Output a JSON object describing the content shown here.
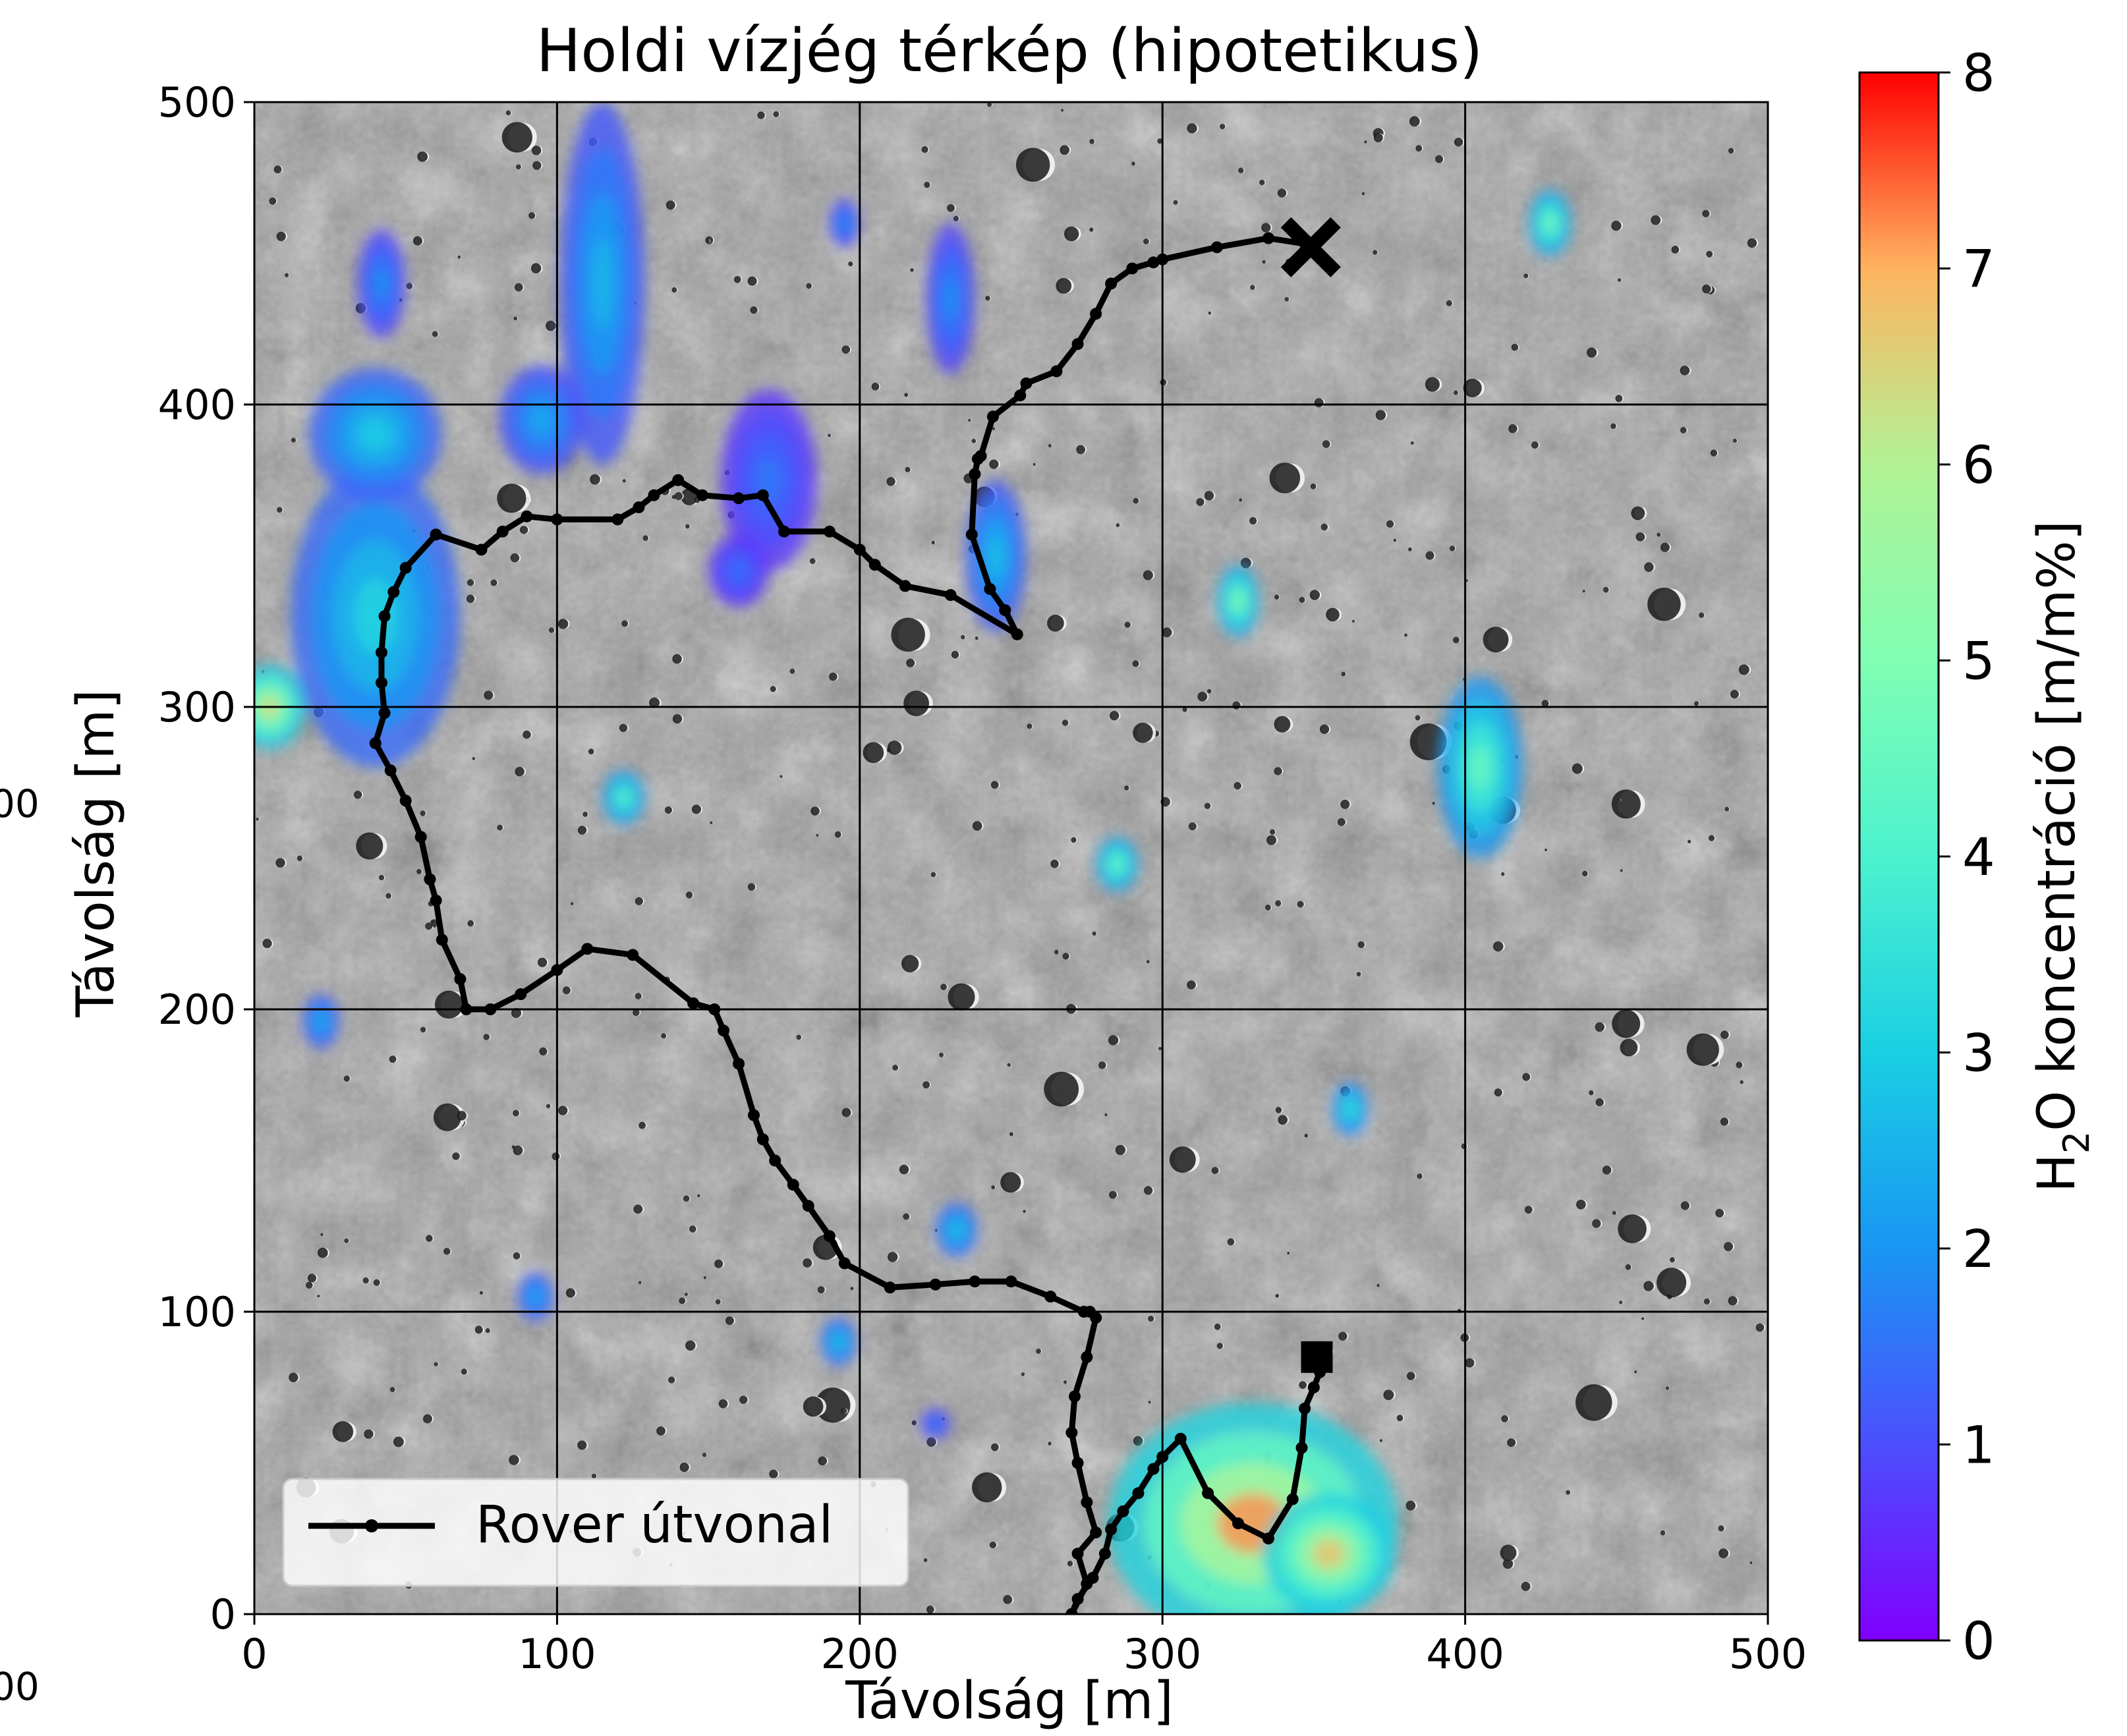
{
  "chart_data": {
    "type": "heatmap",
    "title": "Holdi vízjég térkép (hipotetikus)",
    "xlabel": "Távolság [m]",
    "ylabel": "Távolság [m]",
    "xlim": [
      0,
      500
    ],
    "ylim": [
      0,
      500
    ],
    "xticks": [
      "0",
      "100",
      "200",
      "300",
      "400",
      "500"
    ],
    "yticks": [
      "0",
      "100",
      "200",
      "300",
      "400",
      "500"
    ],
    "grid": true,
    "colorbar": {
      "label_main": "H",
      "label_sub": "2",
      "label_rest": "O koncentráció [m/m%]",
      "min": 0,
      "max": 8,
      "ticks": [
        "0",
        "1",
        "2",
        "3",
        "4",
        "5",
        "6",
        "7",
        "8"
      ],
      "colormap": "rainbow"
    },
    "clipped_edge_labels": [
      "00",
      "00"
    ],
    "background": "grayscale lunar surface with craters",
    "ice_deposits": [
      {
        "x": 5,
        "y": 300,
        "rx": 12,
        "ry": 14,
        "peak": 6.5
      },
      {
        "x": 40,
        "y": 330,
        "rx": 28,
        "ry": 50,
        "peak": 3.2
      },
      {
        "x": 40,
        "y": 390,
        "rx": 22,
        "ry": 22,
        "peak": 3.0
      },
      {
        "x": 42,
        "y": 440,
        "rx": 8,
        "ry": 18,
        "peak": 2.0
      },
      {
        "x": 115,
        "y": 440,
        "rx": 14,
        "ry": 60,
        "peak": 2.6
      },
      {
        "x": 95,
        "y": 395,
        "rx": 14,
        "ry": 18,
        "peak": 2.4
      },
      {
        "x": 170,
        "y": 375,
        "rx": 16,
        "ry": 30,
        "peak": 1.6
      },
      {
        "x": 160,
        "y": 345,
        "rx": 10,
        "ry": 12,
        "peak": 1.5
      },
      {
        "x": 230,
        "y": 435,
        "rx": 8,
        "ry": 25,
        "peak": 2.0
      },
      {
        "x": 245,
        "y": 350,
        "rx": 10,
        "ry": 25,
        "peak": 2.8
      },
      {
        "x": 122,
        "y": 270,
        "rx": 7,
        "ry": 9,
        "peak": 4.5
      },
      {
        "x": 285,
        "y": 248,
        "rx": 7,
        "ry": 9,
        "peak": 4.8
      },
      {
        "x": 325,
        "y": 335,
        "rx": 7,
        "ry": 12,
        "peak": 5.2
      },
      {
        "x": 428,
        "y": 460,
        "rx": 7,
        "ry": 11,
        "peak": 5.0
      },
      {
        "x": 405,
        "y": 280,
        "rx": 14,
        "ry": 30,
        "peak": 4.6
      },
      {
        "x": 362,
        "y": 167,
        "rx": 6,
        "ry": 9,
        "peak": 3.8
      },
      {
        "x": 232,
        "y": 127,
        "rx": 7,
        "ry": 9,
        "peak": 3.0
      },
      {
        "x": 193,
        "y": 90,
        "rx": 6,
        "ry": 8,
        "peak": 3.0
      },
      {
        "x": 93,
        "y": 105,
        "rx": 6,
        "ry": 8,
        "peak": 2.5
      },
      {
        "x": 22,
        "y": 196,
        "rx": 6,
        "ry": 9,
        "peak": 2.6
      },
      {
        "x": 195,
        "y": 460,
        "rx": 5,
        "ry": 8,
        "peak": 2.0
      },
      {
        "x": 225,
        "y": 63,
        "rx": 5,
        "ry": 5,
        "peak": 1.8
      },
      {
        "x": 330,
        "y": 30,
        "rx": 48,
        "ry": 40,
        "peak": 7.2
      },
      {
        "x": 355,
        "y": 20,
        "rx": 22,
        "ry": 20,
        "peak": 6.8
      }
    ],
    "series": [
      {
        "name": "Rover útvonal",
        "x": [
          270,
          275,
          272,
          278,
          275,
          272,
          270,
          271,
          275,
          278,
          276,
          274,
          263,
          250,
          238,
          225,
          210,
          195,
          190,
          183,
          178,
          172,
          168,
          165,
          160,
          155,
          152,
          145,
          125,
          110,
          100,
          88,
          78,
          70,
          68,
          62,
          60,
          58,
          55,
          50,
          45,
          40,
          43,
          42,
          42,
          43,
          46,
          50,
          60,
          75,
          82,
          90,
          100,
          120,
          127,
          132,
          140,
          148,
          160,
          168,
          175,
          190,
          200,
          205,
          215,
          230,
          252,
          248,
          243,
          237,
          238,
          239,
          240,
          244,
          253,
          255,
          265,
          272,
          278,
          283,
          290,
          297,
          300,
          318,
          335,
          348
        ],
        "y": [
          0,
          10,
          20,
          27,
          37,
          50,
          60,
          72,
          85,
          98,
          100,
          100,
          105,
          110,
          110,
          109,
          108,
          116,
          125,
          135,
          142,
          150,
          157,
          165,
          182,
          193,
          200,
          202,
          218,
          220,
          213,
          205,
          200,
          200,
          210,
          223,
          236,
          243,
          257,
          269,
          279,
          288,
          298,
          308,
          318,
          330,
          338,
          346,
          357,
          352,
          358,
          363,
          362,
          362,
          366,
          370,
          375,
          370,
          369,
          370,
          358,
          358,
          352,
          347,
          340,
          337,
          324,
          332,
          339,
          357,
          377,
          382,
          383,
          396,
          403,
          407,
          411,
          420,
          430,
          440,
          445,
          447,
          448,
          452,
          455,
          453
        ]
      },
      {
        "name": "",
        "x": [
          270,
          272,
          277,
          281,
          283,
          287,
          292,
          297,
          300,
          306,
          315,
          325,
          335,
          343,
          346,
          347,
          350,
          352,
          352
        ],
        "y": [
          0,
          5,
          12,
          20,
          28,
          34,
          40,
          48,
          52,
          58,
          40,
          30,
          25,
          38,
          55,
          68,
          75,
          80,
          85
        ]
      }
    ],
    "markers": [
      {
        "name": "start",
        "shape": "cross",
        "x": 349,
        "y": 452
      },
      {
        "name": "end",
        "shape": "square",
        "x": 351,
        "y": 85
      }
    ],
    "legend": {
      "label": "Rover útvonal",
      "position": "bottom-left"
    }
  }
}
